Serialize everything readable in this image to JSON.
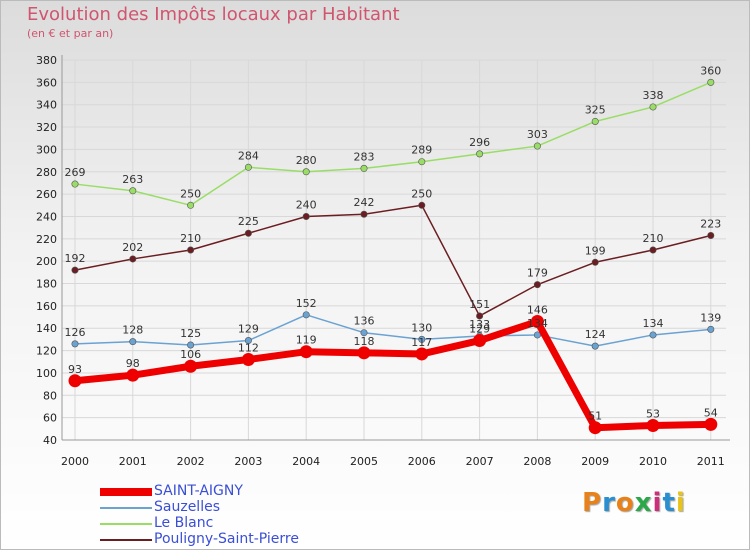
{
  "chart_data": {
    "type": "line",
    "title": "Evolution des Impôts locaux par Habitant",
    "subtitle": "(en € et par an)",
    "categories": [
      "2000",
      "2001",
      "2002",
      "2003",
      "2004",
      "2005",
      "2006",
      "2007",
      "2008",
      "2009",
      "2010",
      "2011"
    ],
    "ylim": [
      40,
      380
    ],
    "yticks": [
      40,
      60,
      80,
      100,
      120,
      140,
      160,
      180,
      200,
      220,
      240,
      260,
      280,
      300,
      320,
      340,
      360,
      380
    ],
    "series": [
      {
        "name": "SAINT-AIGNY",
        "color": "#ee0000",
        "values": [
          93,
          98,
          106,
          112,
          119,
          118,
          117,
          129,
          146,
          51,
          53,
          54
        ]
      },
      {
        "name": "Sauzelles",
        "color": "#6aa2d2",
        "values": [
          126,
          128,
          125,
          129,
          152,
          136,
          130,
          133,
          134,
          124,
          134,
          139
        ]
      },
      {
        "name": "Le Blanc",
        "color": "#99dd66",
        "values": [
          269,
          263,
          250,
          284,
          280,
          283,
          289,
          296,
          303,
          325,
          338,
          360
        ]
      },
      {
        "name": "Pouligny-Saint-Pierre",
        "color": "#6b1e22",
        "values": [
          192,
          202,
          210,
          225,
          240,
          242,
          250,
          151,
          179,
          199,
          210,
          223
        ]
      }
    ],
    "labels": [
      {
        "name": "SAINT-AIGNY",
        "values": [
          "93",
          "98",
          "106",
          "112",
          "119",
          "118",
          "117",
          "129",
          "146",
          "51",
          "53",
          "54"
        ]
      },
      {
        "name": "Sauzelles",
        "values": [
          "126",
          "128",
          "125",
          "129",
          "152",
          "136",
          "130",
          "133",
          "134",
          "124",
          "134",
          "139"
        ]
      },
      {
        "name": "Le Blanc",
        "values": [
          "269",
          "263",
          "250",
          "284",
          "280",
          "283",
          "289",
          "296",
          "303",
          "325",
          "338",
          "360"
        ]
      },
      {
        "name": "Pouligny-Saint-Pierre",
        "values": [
          "192",
          "202",
          "210",
          "225",
          "240",
          "242",
          "250",
          "151",
          "179",
          "199",
          "210",
          "223"
        ]
      }
    ]
  },
  "logo": {
    "text": "Proxiti",
    "colors": [
      "#e8811a",
      "#2a8fd0",
      "#e8811a",
      "#2aa84a",
      "#cc2e7a",
      "#2a8fd0",
      "#e8c31a"
    ]
  }
}
